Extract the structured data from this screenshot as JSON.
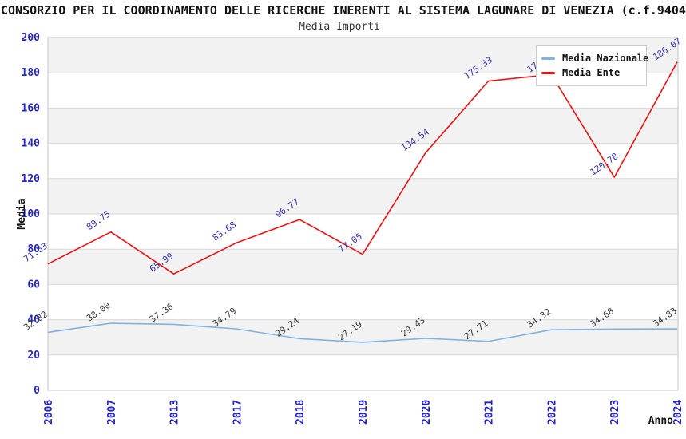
{
  "header": {
    "title": "CONSORZIO PER IL COORDINAMENTO DELLE RICERCHE INERENTI AL SISTEMA LAGUNARE DI VENEZIA (c.f.9404",
    "subtitle": "Media Importi"
  },
  "legend": {
    "items": [
      {
        "label": "Media Nazionale",
        "color": "#7fb2e5"
      },
      {
        "label": "Media Ente",
        "color": "#ee1111"
      }
    ]
  },
  "chart_data": {
    "type": "line",
    "title": "Media Importi",
    "xlabel": "Anno",
    "ylabel": "Media",
    "ylim": [
      0,
      200
    ],
    "ytick_step": 20,
    "grid": true,
    "legend_position": "top-right",
    "categories": [
      "2006",
      "2007",
      "2013",
      "2017",
      "2018",
      "2019",
      "2020",
      "2021",
      "2022",
      "2023",
      "2024"
    ],
    "series": [
      {
        "name": "Media Nazionale",
        "color": "#7fb2e5",
        "label_color": "#3a3a3a",
        "values": [
          32.82,
          38.0,
          37.36,
          34.79,
          29.24,
          27.19,
          29.43,
          27.71,
          34.32,
          34.68,
          34.83
        ]
      },
      {
        "name": "Media Ente",
        "color": "#ee1111",
        "label_color": "#3636ad",
        "values": [
          71.63,
          89.75,
          65.99,
          83.68,
          96.77,
          77.05,
          134.54,
          175.33,
          179.0,
          120.78,
          186.07
        ]
      }
    ],
    "colors": {
      "tick_label": "#2323cb",
      "axis_title": "#111111",
      "band_fill": "#f2f2f2",
      "gridline": "#d8d8d8",
      "plot_border": "#c6c6c6"
    }
  }
}
